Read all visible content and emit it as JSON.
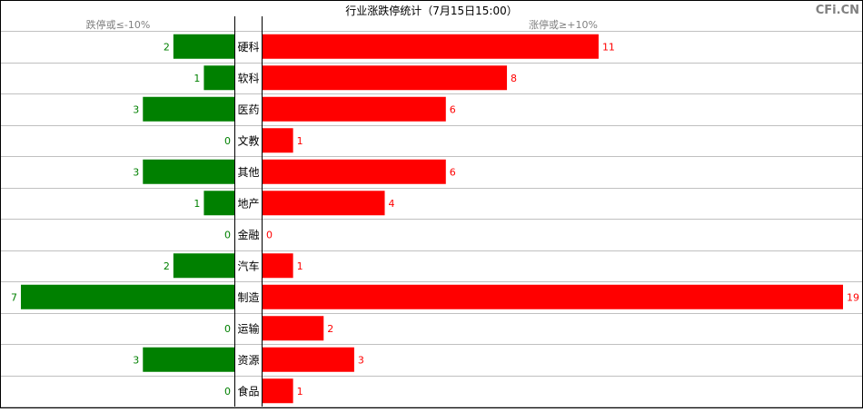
{
  "chart_data": {
    "type": "bar",
    "title": "行业涨跌停统计（7月15日15:00）",
    "watermark": "CFi.CN",
    "left_header": "跌停或≤-10%",
    "right_header": "涨停或≥+10%",
    "categories": [
      "硬科",
      "软科",
      "医药",
      "文教",
      "其他",
      "地产",
      "金融",
      "汽车",
      "制造",
      "运输",
      "资源",
      "食品"
    ],
    "series": [
      {
        "name": "跌停或≤-10%",
        "values": [
          2,
          1,
          3,
          0,
          3,
          1,
          0,
          2,
          7,
          0,
          3,
          0
        ]
      },
      {
        "name": "涨停或≥+10%",
        "values": [
          11,
          8,
          6,
          1,
          6,
          4,
          0,
          1,
          19,
          2,
          3,
          1
        ]
      }
    ],
    "colors": {
      "down": "#008000",
      "up": "#ff0000",
      "grid": "#c0c0c0",
      "header": "#808080",
      "border": "#000000",
      "watermark": "#808080"
    },
    "grid": true,
    "legend": "none"
  }
}
